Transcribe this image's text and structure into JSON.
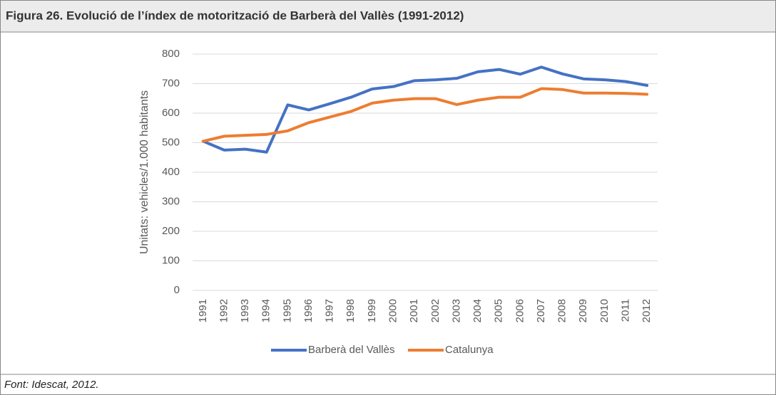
{
  "chart_data": {
    "type": "line",
    "title": "Figura 26. Evolució de l’índex de motorització de Barberà del Vallès (1991-2012)",
    "source": "Font: Idescat, 2012.",
    "y_label": "Unitats: vehicles/1.000 habitants",
    "categories": [
      "1991",
      "1992",
      "1993",
      "1994",
      "1995",
      "1996",
      "1997",
      "1998",
      "1999",
      "2000",
      "2001",
      "2002",
      "2003",
      "2004",
      "2005",
      "2006",
      "2007",
      "2008",
      "2009",
      "2010",
      "2011",
      "2012"
    ],
    "series": [
      {
        "name": "Barberà del Vallès",
        "color": "#4472c4",
        "values": [
          505,
          475,
          478,
          468,
          628,
          611,
          632,
          654,
          682,
          690,
          710,
          713,
          718,
          740,
          748,
          732,
          756,
          733,
          716,
          713,
          707,
          694
        ]
      },
      {
        "name": "Catalunya",
        "color": "#ed7d31",
        "values": [
          505,
          522,
          525,
          528,
          540,
          568,
          587,
          606,
          634,
          644,
          649,
          649,
          629,
          644,
          654,
          654,
          683,
          680,
          668,
          668,
          667,
          664
        ]
      }
    ],
    "ylim": [
      0,
      800
    ],
    "yticks": [
      0,
      100,
      200,
      300,
      400,
      500,
      600,
      700,
      800
    ],
    "grid": true,
    "legend": "bottom"
  }
}
